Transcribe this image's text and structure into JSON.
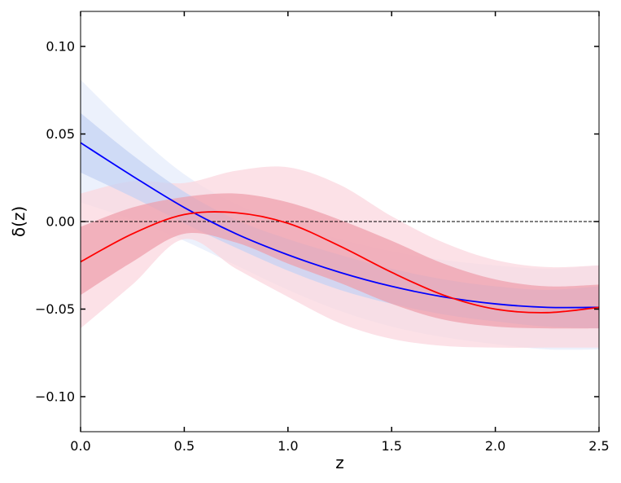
{
  "chart_data": {
    "type": "line",
    "title": "",
    "xlabel": "z",
    "ylabel": "δ(z)",
    "xlim": [
      0.0,
      2.5
    ],
    "ylim": [
      -0.12,
      0.12
    ],
    "xticks": [
      0.0,
      0.5,
      1.0,
      1.5,
      2.0,
      2.5
    ],
    "xtick_labels": [
      "0.0",
      "0.5",
      "1.0",
      "1.5",
      "2.0",
      "2.5"
    ],
    "yticks": [
      -0.1,
      -0.05,
      0.0,
      0.05,
      0.1
    ],
    "ytick_labels": [
      "−0.10",
      "−0.05",
      "0.00",
      "0.05",
      "0.10"
    ],
    "grid": false,
    "reference_line": {
      "y": 0.0,
      "style": "dashed",
      "color": "#000000"
    },
    "x": [
      0.0,
      0.25,
      0.5,
      0.75,
      1.0,
      1.25,
      1.5,
      1.75,
      2.0,
      2.25,
      2.5
    ],
    "series": [
      {
        "color": "#0000ff",
        "band_colors": {
          "inner": "#c3d1f4",
          "outer": "#e5ecfb"
        },
        "values": [
          0.045,
          0.026,
          0.008,
          -0.007,
          -0.019,
          -0.029,
          -0.037,
          -0.043,
          -0.047,
          -0.049,
          -0.049
        ],
        "inner_lower": [
          0.028,
          0.014,
          -0.001,
          -0.015,
          -0.028,
          -0.039,
          -0.047,
          -0.053,
          -0.057,
          -0.06,
          -0.061
        ],
        "inner_upper": [
          0.062,
          0.038,
          0.017,
          0.001,
          -0.01,
          -0.019,
          -0.027,
          -0.033,
          -0.037,
          -0.039,
          -0.037
        ],
        "outer_lower": [
          0.011,
          0.001,
          -0.011,
          -0.025,
          -0.039,
          -0.051,
          -0.06,
          -0.066,
          -0.07,
          -0.073,
          -0.073
        ],
        "outer_upper": [
          0.081,
          0.052,
          0.027,
          0.01,
          -0.001,
          -0.01,
          -0.017,
          -0.022,
          -0.025,
          -0.027,
          -0.025
        ]
      },
      {
        "color": "#ff0000",
        "band_colors": {
          "inner": "#ee9caa",
          "outer": "#fbd7df"
        },
        "values": [
          -0.023,
          -0.007,
          0.004,
          0.005,
          -0.001,
          -0.014,
          -0.029,
          -0.042,
          -0.05,
          -0.052,
          -0.049
        ],
        "inner_lower": [
          -0.042,
          -0.023,
          -0.007,
          -0.012,
          -0.024,
          -0.035,
          -0.047,
          -0.056,
          -0.06,
          -0.061,
          -0.061
        ],
        "inner_upper": [
          -0.003,
          0.008,
          0.014,
          0.016,
          0.011,
          0.001,
          -0.011,
          -0.024,
          -0.033,
          -0.037,
          -0.036
        ],
        "outer_lower": [
          -0.061,
          -0.036,
          -0.01,
          -0.027,
          -0.043,
          -0.058,
          -0.067,
          -0.071,
          -0.072,
          -0.072,
          -0.072
        ],
        "outer_upper": [
          0.016,
          0.023,
          0.022,
          0.029,
          0.031,
          0.021,
          0.003,
          -0.012,
          -0.022,
          -0.026,
          -0.025
        ]
      }
    ]
  }
}
